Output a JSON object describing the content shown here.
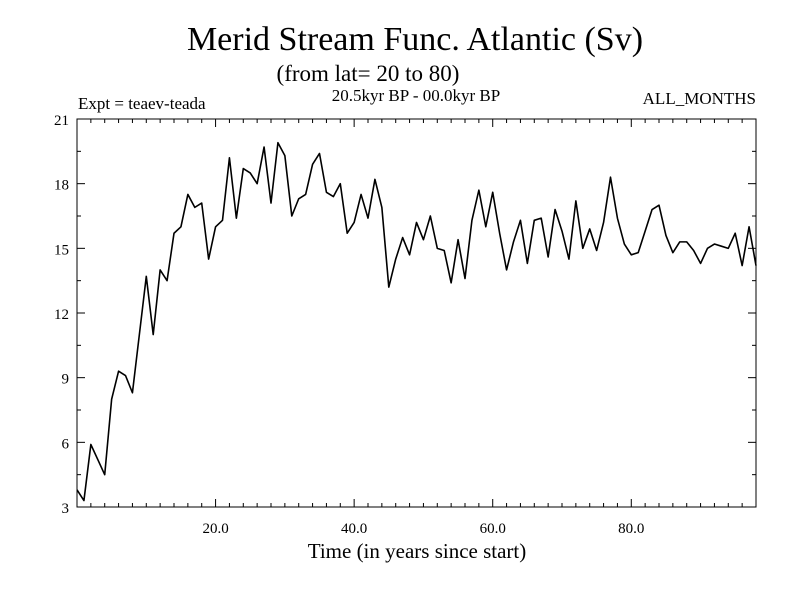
{
  "chart_data": {
    "type": "line",
    "title": "Merid Stream Func. Atlantic (Sv)",
    "subtitle": "(from lat= 20 to 80)",
    "experiment": "Expt = teaev-teada",
    "period": "20.5kyr BP - 00.0kyr BP",
    "months": "ALL_MONTHS",
    "xlabel": "Time (in years since start)",
    "ylabel": "",
    "xlim": [
      0,
      98
    ],
    "ylim": [
      3,
      21
    ],
    "x_ticks": [
      20,
      40,
      60,
      80
    ],
    "x_tick_labels": [
      "20.0",
      "40.0",
      "60.0",
      "80.0"
    ],
    "y_ticks": [
      3,
      6,
      9,
      12,
      15,
      18,
      21
    ],
    "y_tick_labels": [
      "3",
      "6",
      "9",
      "12",
      "15",
      "18",
      "21"
    ],
    "grid": false,
    "series": [
      {
        "name": "Merid Stream Func. Atlantic",
        "color": "#000000",
        "x": [
          0,
          1,
          2,
          3,
          4,
          5,
          6,
          7,
          8,
          9,
          10,
          11,
          12,
          13,
          14,
          15,
          16,
          17,
          18,
          19,
          20,
          21,
          22,
          23,
          24,
          25,
          26,
          27,
          28,
          29,
          30,
          31,
          32,
          33,
          34,
          35,
          36,
          37,
          38,
          39,
          40,
          41,
          42,
          43,
          44,
          45,
          46,
          47,
          48,
          49,
          50,
          51,
          52,
          53,
          54,
          55,
          56,
          57,
          58,
          59,
          60,
          61,
          62,
          63,
          64,
          65,
          66,
          67,
          68,
          69,
          70,
          71,
          72,
          73,
          74,
          75,
          76,
          77,
          78,
          79,
          80,
          81,
          82,
          83,
          84,
          85,
          86,
          87,
          88,
          89,
          90,
          91,
          92,
          93,
          94,
          95,
          96,
          97,
          98
        ],
        "values": [
          3.8,
          3.3,
          5.9,
          5.2,
          4.5,
          8.0,
          9.3,
          9.1,
          8.3,
          11.0,
          13.7,
          11.0,
          14.0,
          13.5,
          15.7,
          16.0,
          17.5,
          16.9,
          17.1,
          14.5,
          16.0,
          16.3,
          19.2,
          16.4,
          18.7,
          18.5,
          18.0,
          19.7,
          17.1,
          19.9,
          19.3,
          16.5,
          17.3,
          17.5,
          18.9,
          19.4,
          17.6,
          17.4,
          18.0,
          15.7,
          16.2,
          17.5,
          16.4,
          18.2,
          16.9,
          13.2,
          14.5,
          15.5,
          14.7,
          16.2,
          15.4,
          16.5,
          15.0,
          14.9,
          13.4,
          15.4,
          13.6,
          16.3,
          17.7,
          16.0,
          17.6,
          15.7,
          14.0,
          15.3,
          16.3,
          14.3,
          16.3,
          16.4,
          14.6,
          16.8,
          15.8,
          14.5,
          17.2,
          15.0,
          15.9,
          14.9,
          16.2,
          18.3,
          16.4,
          15.2,
          14.7,
          14.8,
          15.8,
          16.8,
          17.0,
          15.6,
          14.8,
          15.3,
          15.3,
          14.9,
          14.3,
          15.0,
          15.2,
          15.1,
          15.0,
          15.7,
          14.2,
          16.0,
          14.2
        ]
      }
    ]
  }
}
